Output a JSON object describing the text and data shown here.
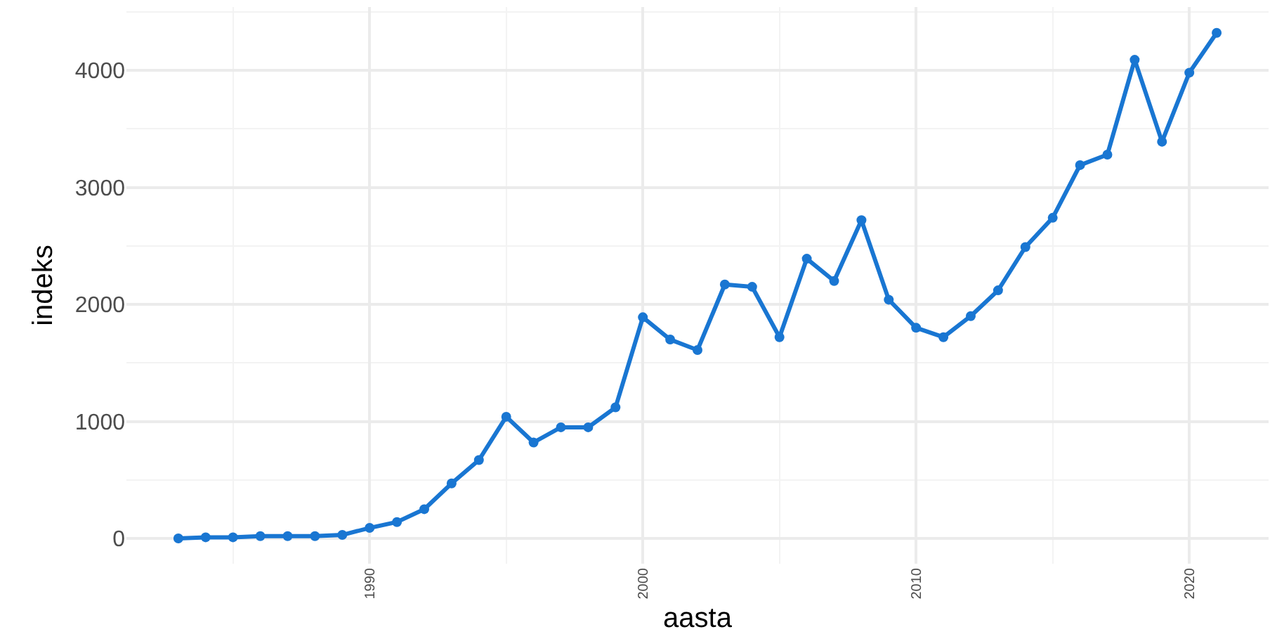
{
  "chart_data": {
    "type": "line",
    "xlabel": "aasta",
    "ylabel": "indeks",
    "x": [
      1983,
      1984,
      1985,
      1986,
      1987,
      1988,
      1989,
      1990,
      1991,
      1992,
      1993,
      1994,
      1995,
      1996,
      1997,
      1998,
      1999,
      2000,
      2001,
      2002,
      2003,
      2004,
      2005,
      2006,
      2007,
      2008,
      2009,
      2010,
      2011,
      2012,
      2013,
      2014,
      2015,
      2016,
      2017,
      2018,
      2019,
      2020,
      2021
    ],
    "series": [
      {
        "color": "#1976d2",
        "values": [
          0,
          10,
          10,
          20,
          20,
          20,
          30,
          90,
          140,
          250,
          470,
          670,
          1040,
          820,
          950,
          950,
          1120,
          1890,
          1700,
          1610,
          2170,
          2150,
          1720,
          2390,
          2200,
          2720,
          2040,
          1800,
          1720,
          1900,
          2120,
          2490,
          2740,
          3190,
          3280,
          4090,
          3390,
          3980,
          4320
        ]
      }
    ],
    "xlim": [
      1981.1,
      2022.9
    ],
    "xticks": [
      1990,
      2000,
      2010,
      2020
    ],
    "ylim": [
      -216,
      4541
    ],
    "yticks": [
      0,
      1000,
      2000,
      3000,
      4000
    ],
    "grid": true,
    "marker": "circle",
    "line_style": "solid"
  }
}
